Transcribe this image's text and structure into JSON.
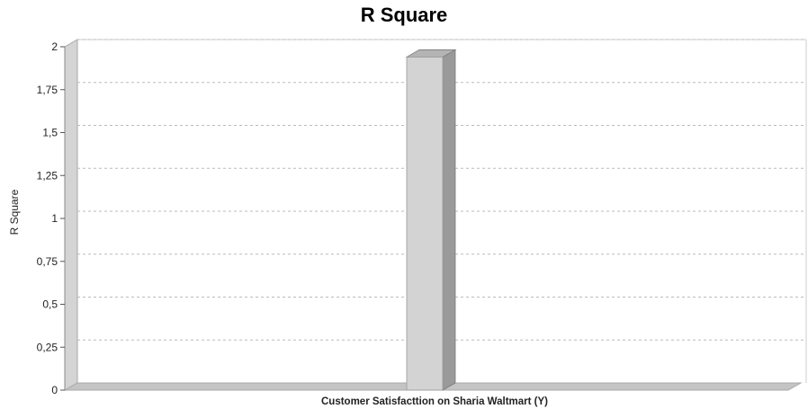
{
  "chart_data": {
    "type": "bar",
    "title": "R Square",
    "ylabel": "R Square",
    "xlabel": "",
    "categories": [
      "Customer Satisfacttion on Sharia Waltmart (Y)"
    ],
    "values": [
      1.94
    ],
    "ylim": [
      0,
      2
    ],
    "yticks": [
      "0",
      "0,25",
      "0,5",
      "0,75",
      "1",
      "1,25",
      "1,5",
      "1,75",
      "2"
    ],
    "grid": true,
    "legend": "none",
    "colors": {
      "bar_front": "#d3d3d3",
      "bar_side": "#9a9a9a",
      "bar_top": "#b4b4b4",
      "wall": "#d4d4d4",
      "floor": "#c4c4c4",
      "grid": "#bbbbbb"
    }
  }
}
